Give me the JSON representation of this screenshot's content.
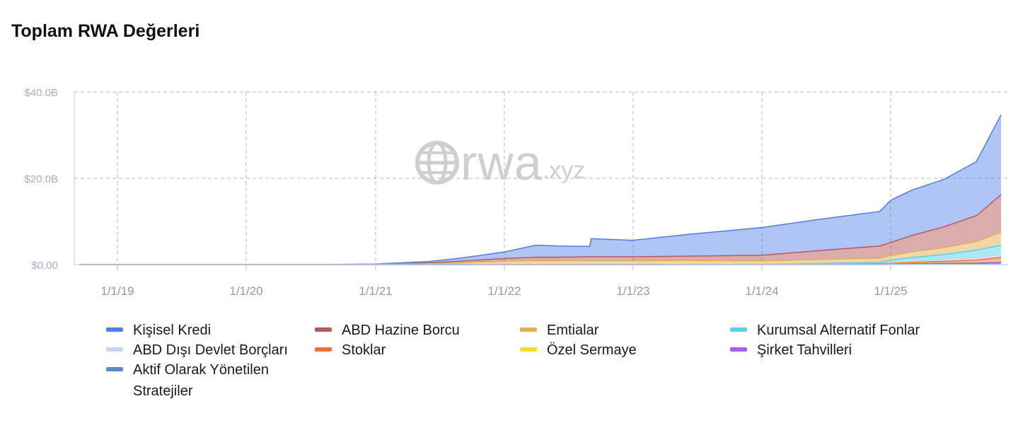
{
  "title": "Toplam RWA Değerleri",
  "watermark": {
    "brand": "rwa",
    "suffix": ".xyz",
    "icon": "globe-icon"
  },
  "chart_data": {
    "type": "area",
    "stacked": true,
    "x_ticks": [
      "1/1/19",
      "1/1/20",
      "1/1/21",
      "1/1/22",
      "1/1/23",
      "1/1/24",
      "1/1/25"
    ],
    "y_ticks": [
      "$0.00",
      "$20.0B",
      "$40.0B"
    ],
    "ylim": [
      0,
      40
    ],
    "grid": true,
    "legend_position": "bottom",
    "x": [
      "2018-09-15",
      "2019-06-01",
      "2020-06-01",
      "2021-01-01",
      "2021-06-01",
      "2021-09-01",
      "2022-01-01",
      "2022-04-01",
      "2022-06-01",
      "2022-09-01",
      "2022-09-05",
      "2023-01-01",
      "2023-06-01",
      "2024-01-01",
      "2024-06-01",
      "2024-12-01",
      "2025-01-01",
      "2025-03-01",
      "2025-06-01",
      "2025-09-01",
      "2025-11-10"
    ],
    "series": [
      {
        "name": "Kişisel Kredi",
        "color": "#4f7de8",
        "values": [
          0,
          0,
          0,
          0.05,
          0.3,
          0.7,
          1.5,
          2.8,
          2.6,
          2.4,
          4.2,
          3.8,
          5.0,
          6.4,
          7.2,
          8.0,
          9.8,
          10.5,
          11.0,
          12.5,
          18.5
        ]
      },
      {
        "name": "ABD Hazine Borcu",
        "color": "#b55a5a",
        "values": [
          0,
          0,
          0,
          0.02,
          0.2,
          0.4,
          0.6,
          0.8,
          0.8,
          0.9,
          0.9,
          0.9,
          1.0,
          1.3,
          2.0,
          2.8,
          3.0,
          3.8,
          4.8,
          6.0,
          8.7
        ]
      },
      {
        "name": "Emtialar",
        "color": "#e0b050",
        "values": [
          0,
          0,
          0,
          0.05,
          0.2,
          0.4,
          0.8,
          0.9,
          0.9,
          0.9,
          0.9,
          0.9,
          0.9,
          0.8,
          0.9,
          1.0,
          1.1,
          1.3,
          1.6,
          2.0,
          3.0
        ]
      },
      {
        "name": "Kurumsal Alternatif Fonlar",
        "color": "#5ad0ec",
        "values": [
          0,
          0,
          0,
          0,
          0,
          0,
          0,
          0,
          0,
          0,
          0,
          0,
          0,
          0,
          0.1,
          0.2,
          0.5,
          0.8,
          1.2,
          1.8,
          2.2
        ]
      },
      {
        "name": "ABD Dışı Devlet Borçları",
        "color": "#c6d6f2",
        "values": [
          0,
          0,
          0,
          0,
          0,
          0,
          0,
          0,
          0,
          0,
          0,
          0,
          0,
          0,
          0.05,
          0.1,
          0.2,
          0.3,
          0.4,
          0.5,
          0.6
        ]
      },
      {
        "name": "Stoklar",
        "color": "#f07040",
        "values": [
          0,
          0,
          0,
          0,
          0,
          0,
          0,
          0,
          0,
          0,
          0,
          0,
          0,
          0,
          0.02,
          0.05,
          0.1,
          0.2,
          0.3,
          0.5,
          0.9
        ]
      },
      {
        "name": "Özel Sermaye",
        "color": "#f2dc30",
        "values": [
          0,
          0,
          0,
          0,
          0,
          0,
          0,
          0,
          0,
          0,
          0,
          0,
          0,
          0,
          0.02,
          0.05,
          0.08,
          0.1,
          0.15,
          0.2,
          0.3
        ]
      },
      {
        "name": "Şirket Tahvilleri",
        "color": "#a45fe6",
        "values": [
          0,
          0,
          0,
          0,
          0,
          0,
          0,
          0,
          0,
          0,
          0,
          0,
          0.05,
          0.05,
          0.05,
          0.1,
          0.1,
          0.15,
          0.2,
          0.25,
          0.35
        ]
      },
      {
        "name": "Aktif Olarak Yönetilen Stratejiler",
        "color": "#5b8cc4",
        "values": [
          0,
          0,
          0,
          0,
          0,
          0,
          0,
          0,
          0,
          0,
          0,
          0,
          0,
          0,
          0,
          0,
          0.02,
          0.05,
          0.08,
          0.1,
          0.15
        ]
      }
    ]
  },
  "legend": [
    {
      "label": "Kişisel Kredi",
      "color": "#4f7de8"
    },
    {
      "label": "ABD Hazine Borcu",
      "color": "#b55a5a"
    },
    {
      "label": "Emtialar",
      "color": "#e0b050"
    },
    {
      "label": "Kurumsal Alternatif Fonlar",
      "color": "#5ad0ec"
    },
    {
      "label": "ABD Dışı Devlet Borçları",
      "color": "#c6d6f2"
    },
    {
      "label": "Stoklar",
      "color": "#f07040"
    },
    {
      "label": "Özel Sermaye",
      "color": "#f2dc30"
    },
    {
      "label": "Şirket Tahvilleri",
      "color": "#a45fe6"
    },
    {
      "label": "Aktif Olarak Yönetilen Stratejiler",
      "color": "#5b8cc4"
    }
  ]
}
